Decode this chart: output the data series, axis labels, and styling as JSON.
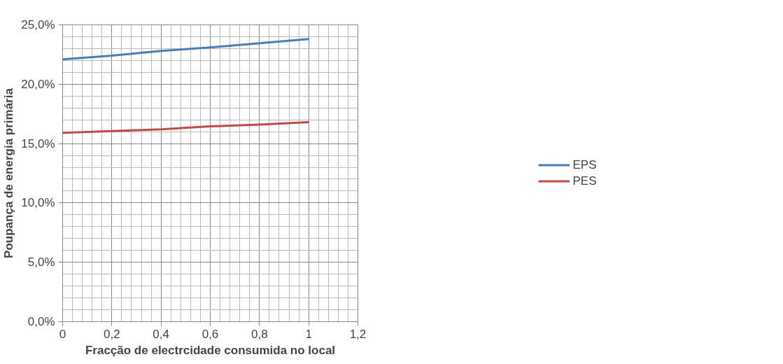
{
  "chart_data": {
    "type": "line",
    "xlabel": "Fracção de electrcidade consumida no local",
    "ylabel": "Poupança de energia primária",
    "x": [
      0,
      0.2,
      0.4,
      0.6,
      0.8,
      1
    ],
    "series": [
      {
        "name": "EPS",
        "color": "#4a7ebb",
        "values": [
          22.1,
          22.4,
          22.8,
          23.1,
          23.45,
          23.8
        ]
      },
      {
        "name": "PES",
        "color": "#be4b48",
        "values": [
          15.9,
          16.05,
          16.2,
          16.45,
          16.6,
          16.8
        ]
      }
    ],
    "xlim": [
      0,
      1.2
    ],
    "ylim": [
      0,
      25
    ],
    "xticks": [
      0,
      {
        "value": 0.2,
        "label": "0,2"
      },
      {
        "value": 0.4,
        "label": "0,4"
      },
      {
        "value": 0.6,
        "label": "0,6"
      },
      {
        "value": 0.8,
        "label": "0,8"
      },
      1,
      {
        "value": 1.2,
        "label": "1,2"
      }
    ],
    "yticks": [
      {
        "value": 0,
        "label": "0,0%"
      },
      {
        "value": 5,
        "label": "5,0%"
      },
      {
        "value": 10,
        "label": "10,0%"
      },
      {
        "value": 15,
        "label": "15,0%"
      },
      {
        "value": 20,
        "label": "20,0%"
      },
      {
        "value": 25,
        "label": "25,0%"
      }
    ],
    "grid": true,
    "legend": "right",
    "marker": "none",
    "line_style": "solid"
  }
}
